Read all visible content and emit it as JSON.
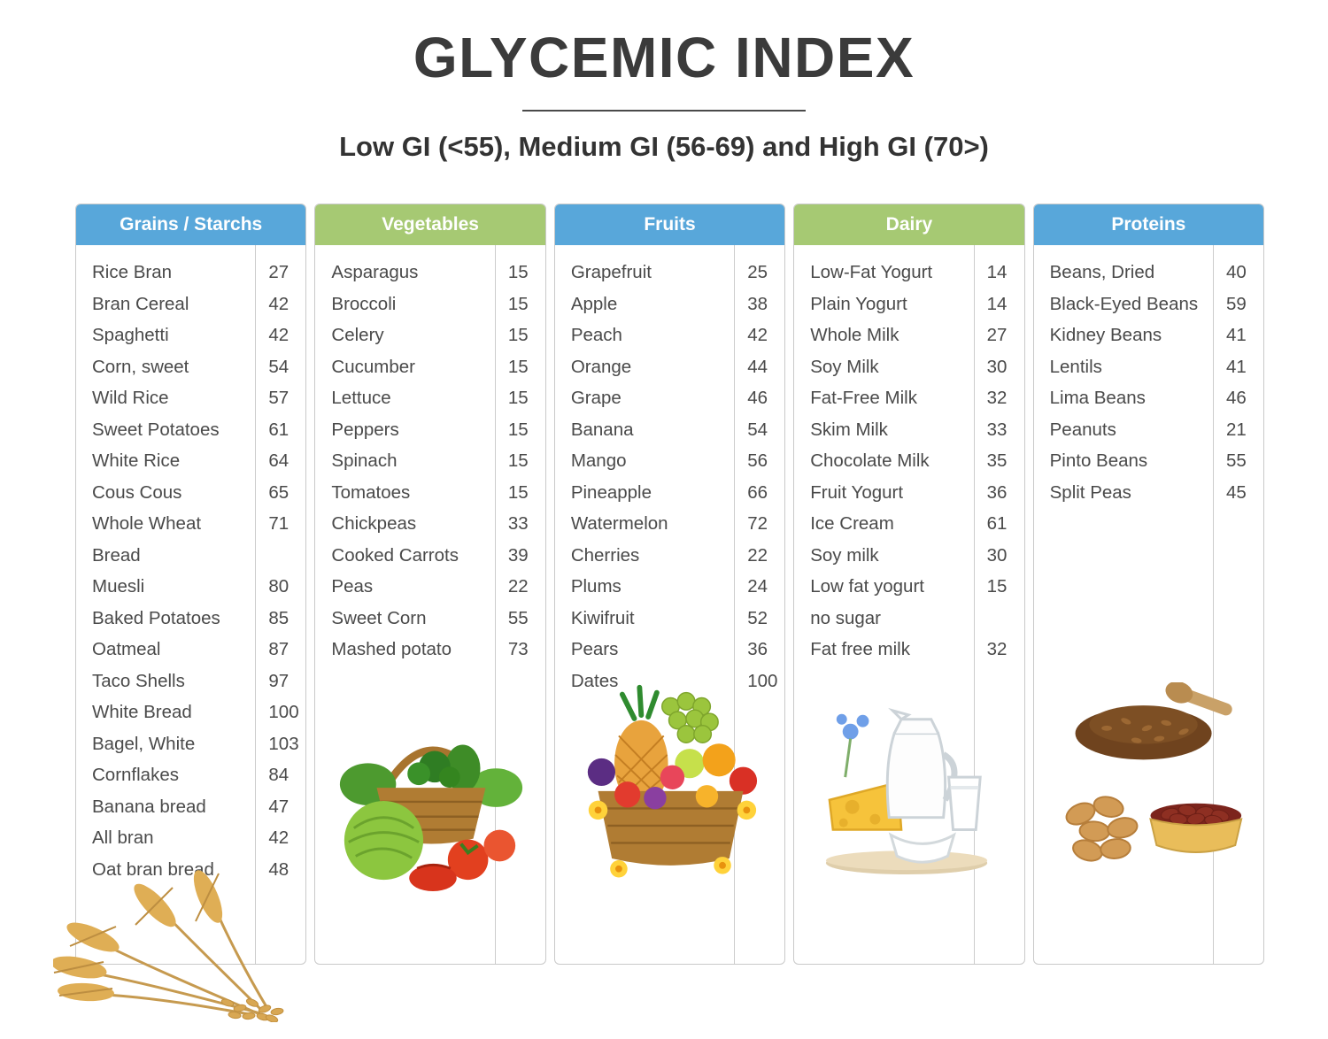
{
  "title": "GLYCEMIC INDEX",
  "subtitle": "Low GI (<55), Medium GI (56-69) and High GI (70>)",
  "colors": {
    "blue_header": "#58a7da",
    "green_header": "#a6c973",
    "body_text": "#4a4a4a",
    "title_text": "#3b3b3b",
    "border": "#c9c9c9"
  },
  "columns": [
    {
      "id": "grains",
      "header": "Grains / Starchs",
      "header_color": "#58a7da",
      "image": "wheat-sheaf-image",
      "items": [
        {
          "name": "Rice Bran",
          "value": "27"
        },
        {
          "name": "Bran Cereal",
          "value": "42"
        },
        {
          "name": "Spaghetti",
          "value": "42"
        },
        {
          "name": "Corn, sweet",
          "value": "54"
        },
        {
          "name": "Wild Rice",
          "value": "57"
        },
        {
          "name": "Sweet Potatoes",
          "value": "61"
        },
        {
          "name": "White Rice",
          "value": "64"
        },
        {
          "name": "Cous Cous",
          "value": "65"
        },
        {
          "name": "Whole Wheat\nBread",
          "value": "71"
        },
        {
          "name": "Muesli",
          "value": "80"
        },
        {
          "name": "Baked Potatoes",
          "value": "85"
        },
        {
          "name": "Oatmeal",
          "value": "87"
        },
        {
          "name": "Taco Shells",
          "value": "97"
        },
        {
          "name": "White Bread",
          "value": "100"
        },
        {
          "name": "Bagel, White",
          "value": "103"
        },
        {
          "name": "Cornflakes",
          "value": "84"
        },
        {
          "name": "Banana bread",
          "value": "47"
        },
        {
          "name": "All bran",
          "value": "42"
        },
        {
          "name": "Oat bran bread",
          "value": "48"
        }
      ]
    },
    {
      "id": "vegetables",
      "header": "Vegetables",
      "header_color": "#a6c973",
      "image": "vegetable-basket-image",
      "items": [
        {
          "name": "Asparagus",
          "value": "15"
        },
        {
          "name": "Broccoli",
          "value": "15"
        },
        {
          "name": "Celery",
          "value": "15"
        },
        {
          "name": "Cucumber",
          "value": "15"
        },
        {
          "name": "Lettuce",
          "value": "15"
        },
        {
          "name": "Peppers",
          "value": "15"
        },
        {
          "name": "Spinach",
          "value": "15"
        },
        {
          "name": "Tomatoes",
          "value": "15"
        },
        {
          "name": "Chickpeas",
          "value": "33"
        },
        {
          "name": "Cooked Carrots",
          "value": "39"
        },
        {
          "name": "Peas",
          "value": "22"
        },
        {
          "name": "Sweet Corn",
          "value": "55"
        },
        {
          "name": "Mashed potato",
          "value": "73"
        }
      ]
    },
    {
      "id": "fruits",
      "header": "Fruits",
      "header_color": "#58a7da",
      "image": "fruit-basket-image",
      "items": [
        {
          "name": "Grapefruit",
          "value": "25"
        },
        {
          "name": "Apple",
          "value": "38"
        },
        {
          "name": "Peach",
          "value": "42"
        },
        {
          "name": "Orange",
          "value": "44"
        },
        {
          "name": "Grape",
          "value": "46"
        },
        {
          "name": "Banana",
          "value": "54"
        },
        {
          "name": "Mango",
          "value": "56"
        },
        {
          "name": "Pineapple",
          "value": "66"
        },
        {
          "name": "Watermelon",
          "value": "72"
        },
        {
          "name": "Cherries",
          "value": "22"
        },
        {
          "name": "Plums",
          "value": "24"
        },
        {
          "name": "Kiwifruit",
          "value": "52"
        },
        {
          "name": "Pears",
          "value": "36"
        },
        {
          "name": "Dates",
          "value": "100"
        }
      ]
    },
    {
      "id": "dairy",
      "header": "Dairy",
      "header_color": "#a6c973",
      "image": "dairy-products-image",
      "items": [
        {
          "name": "Low-Fat Yogurt",
          "value": "14"
        },
        {
          "name": "Plain Yogurt",
          "value": "14"
        },
        {
          "name": "Whole Milk",
          "value": "27"
        },
        {
          "name": "Soy Milk",
          "value": "30"
        },
        {
          "name": "Fat-Free Milk",
          "value": "32"
        },
        {
          "name": "Skim Milk",
          "value": "33"
        },
        {
          "name": "Chocolate Milk",
          "value": "35"
        },
        {
          "name": "Fruit Yogurt",
          "value": "36"
        },
        {
          "name": "Ice Cream",
          "value": "61"
        },
        {
          "name": "Soy milk",
          "value": "30"
        },
        {
          "name": "Low fat yogurt\nno sugar",
          "value": "15"
        },
        {
          "name": "Fat free milk",
          "value": "32"
        }
      ]
    },
    {
      "id": "proteins",
      "header": "Proteins",
      "header_color": "#58a7da",
      "image": "nuts-beans-image",
      "items": [
        {
          "name": "Beans, Dried",
          "value": "40"
        },
        {
          "name": "Black-Eyed Beans",
          "value": "59"
        },
        {
          "name": "Kidney Beans",
          "value": "41"
        },
        {
          "name": "Lentils",
          "value": "41"
        },
        {
          "name": "Lima Beans",
          "value": "46"
        },
        {
          "name": "Peanuts",
          "value": "21"
        },
        {
          "name": "Pinto Beans",
          "value": "55"
        },
        {
          "name": "Split Peas",
          "value": "45"
        }
      ]
    }
  ]
}
